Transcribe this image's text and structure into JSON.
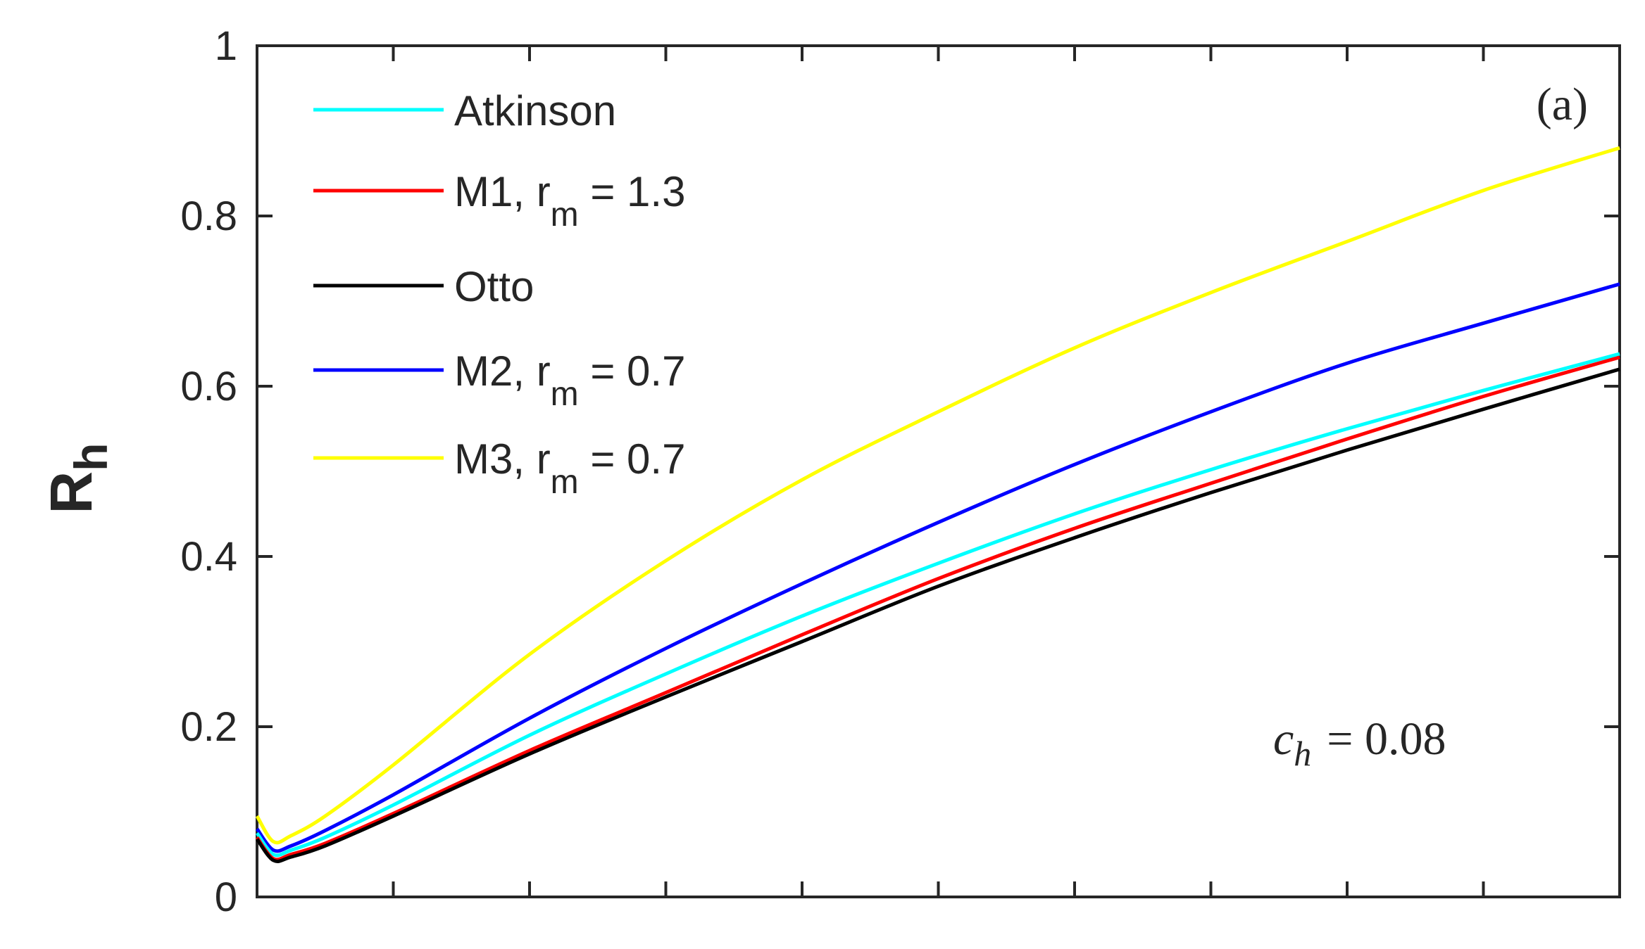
{
  "chart_data": {
    "type": "line",
    "title": "",
    "xlabel": "",
    "ylabel": "R",
    "ylabel_subscript": "h",
    "ylim": [
      0,
      1
    ],
    "xlim": [
      0,
      1
    ],
    "yticks": [
      0,
      0.2,
      0.4,
      0.6,
      0.8,
      1
    ],
    "ytick_labels": [
      "0",
      "0.2",
      "0.4",
      "0.6",
      "0.8",
      "1"
    ],
    "xticks": [
      0.1,
      0.2,
      0.3,
      0.4,
      0.5,
      0.6,
      0.7,
      0.8,
      0.9
    ],
    "grid": false,
    "legend_position": "top-left",
    "panel_label": "(a)",
    "annotation": {
      "symbol": "c",
      "subscript": "h",
      "text": "= 0.08"
    },
    "series": [
      {
        "name": "Atkinson",
        "legend_main": "Atkinson",
        "legend_sub": "",
        "legend_tail": "",
        "color": "#00ffff",
        "x": [
          0,
          0.012,
          0.025,
          0.05,
          0.1,
          0.2,
          0.3,
          0.4,
          0.5,
          0.6,
          0.7,
          0.8,
          0.9,
          1.0
        ],
        "y": [
          0.075,
          0.05,
          0.055,
          0.07,
          0.108,
          0.19,
          0.262,
          0.33,
          0.392,
          0.45,
          0.502,
          0.55,
          0.595,
          0.638
        ]
      },
      {
        "name": "M1, r_m = 1.3",
        "legend_main": "M1, r",
        "legend_sub": "m",
        "legend_tail": " = 1.3",
        "color": "#ff0000",
        "x": [
          0,
          0.012,
          0.025,
          0.05,
          0.1,
          0.2,
          0.3,
          0.4,
          0.5,
          0.6,
          0.7,
          0.8,
          0.9,
          1.0
        ],
        "y": [
          0.07,
          0.045,
          0.05,
          0.063,
          0.098,
          0.172,
          0.24,
          0.308,
          0.374,
          0.433,
          0.486,
          0.538,
          0.588,
          0.634
        ]
      },
      {
        "name": "Otto",
        "legend_main": "Otto",
        "legend_sub": "",
        "legend_tail": "",
        "color": "#000000",
        "x": [
          0,
          0.012,
          0.025,
          0.05,
          0.1,
          0.2,
          0.3,
          0.4,
          0.5,
          0.6,
          0.7,
          0.8,
          0.9,
          1.0
        ],
        "y": [
          0.068,
          0.043,
          0.047,
          0.06,
          0.095,
          0.168,
          0.235,
          0.3,
          0.365,
          0.422,
          0.475,
          0.525,
          0.573,
          0.62
        ]
      },
      {
        "name": "M2, r_m = 0.7",
        "legend_main": "M2, r",
        "legend_sub": "m",
        "legend_tail": " = 0.7",
        "color": "#0000ff",
        "x": [
          0,
          0.012,
          0.025,
          0.05,
          0.1,
          0.2,
          0.3,
          0.4,
          0.5,
          0.6,
          0.7,
          0.8,
          0.9,
          1.0
        ],
        "y": [
          0.08,
          0.055,
          0.06,
          0.078,
          0.12,
          0.21,
          0.292,
          0.368,
          0.44,
          0.508,
          0.57,
          0.627,
          0.674,
          0.72
        ]
      },
      {
        "name": "M3, r_m = 0.7",
        "legend_main": "M3, r",
        "legend_sub": "m",
        "legend_tail": " = 0.7",
        "color": "#ffff00",
        "x": [
          0,
          0.012,
          0.025,
          0.05,
          0.1,
          0.2,
          0.3,
          0.4,
          0.5,
          0.6,
          0.7,
          0.8,
          0.9,
          1.0
        ],
        "y": [
          0.095,
          0.065,
          0.072,
          0.095,
          0.155,
          0.285,
          0.395,
          0.49,
          0.57,
          0.645,
          0.71,
          0.77,
          0.83,
          0.88
        ]
      }
    ]
  }
}
